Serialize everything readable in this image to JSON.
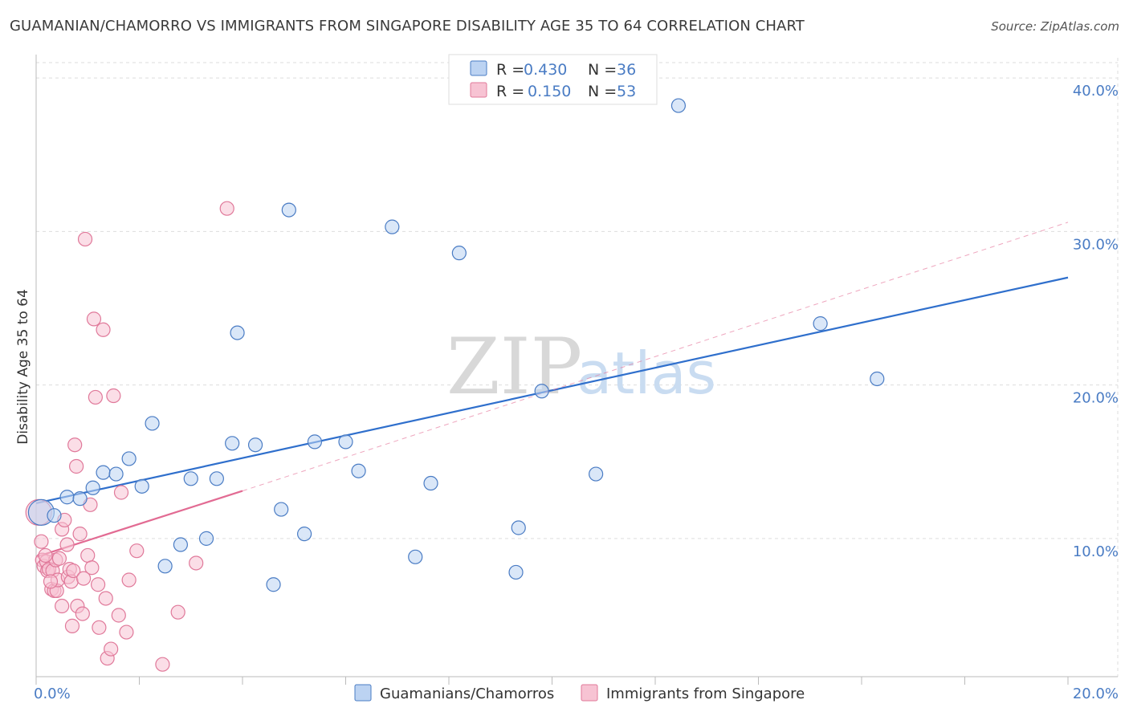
{
  "title": "GUAMANIAN/CHAMORRO VS IMMIGRANTS FROM SINGAPORE DISABILITY AGE 35 TO 64 CORRELATION CHART",
  "source": "Source: ZipAtlas.com",
  "watermark": {
    "zip": "ZIP",
    "atlas": "atlas"
  },
  "colors": {
    "blue": "#4a7cc4",
    "blue_fill": "#bcd3f2",
    "blue_line": "#2f6fcc",
    "pink": "#e0799a",
    "pink_fill": "#f7c3d3",
    "pink_line": "#e26b93",
    "grid": "#dddddd"
  },
  "legend": {
    "items": [
      {
        "r_label": "R =",
        "r_value": "0.430",
        "n_label": "N =",
        "n_value": "36",
        "color": "blue"
      },
      {
        "r_label": "R =",
        "r_value": "0.150",
        "n_label": "N =",
        "n_value": "53",
        "color": "pink"
      }
    ]
  },
  "chart_data": {
    "type": "scatter",
    "title": "GUAMANIAN/CHAMORRO VS IMMIGRANTS FROM SINGAPORE DISABILITY AGE 35 TO 64 CORRELATION CHART",
    "xlabel": "",
    "ylabel": "Disability Age 35 to 64",
    "xlim": [
      0,
      20
    ],
    "ylim": [
      1,
      41
    ],
    "x_tick_labels": [
      "0.0%",
      "20.0%"
    ],
    "y_ticks": [
      10,
      20,
      30,
      40
    ],
    "y_tick_labels": [
      "10.0%",
      "20.0%",
      "30.0%",
      "40.0%"
    ],
    "legend_position": "top-center",
    "series": [
      {
        "name": "Guamanians/Chamorros",
        "color": "blue",
        "points": [
          [
            0.1,
            11.7
          ],
          [
            0.35,
            11.5
          ],
          [
            0.6,
            12.7
          ],
          [
            0.85,
            12.6
          ],
          [
            1.1,
            13.3
          ],
          [
            1.3,
            14.3
          ],
          [
            1.55,
            14.2
          ],
          [
            1.8,
            15.2
          ],
          [
            2.05,
            13.4
          ],
          [
            2.25,
            17.5
          ],
          [
            2.5,
            8.2
          ],
          [
            2.8,
            9.6
          ],
          [
            3.0,
            13.9
          ],
          [
            3.3,
            10.0
          ],
          [
            3.5,
            13.9
          ],
          [
            3.8,
            16.2
          ],
          [
            3.9,
            23.4
          ],
          [
            4.25,
            16.1
          ],
          [
            4.6,
            7.0
          ],
          [
            4.75,
            11.9
          ],
          [
            4.9,
            31.4
          ],
          [
            5.2,
            10.3
          ],
          [
            5.4,
            16.3
          ],
          [
            6.0,
            16.3
          ],
          [
            6.25,
            14.4
          ],
          [
            6.9,
            30.3
          ],
          [
            7.35,
            8.8
          ],
          [
            7.65,
            13.6
          ],
          [
            8.2,
            28.6
          ],
          [
            9.35,
            10.7
          ],
          [
            9.3,
            7.8
          ],
          [
            9.8,
            19.6
          ],
          [
            10.85,
            14.2
          ],
          [
            12.45,
            38.2
          ],
          [
            15.2,
            24.0
          ],
          [
            16.3,
            20.4
          ]
        ]
      },
      {
        "name": "Immigrants from Singapore",
        "color": "pink",
        "points": [
          [
            0.05,
            11.7
          ],
          [
            0.1,
            9.8
          ],
          [
            0.12,
            8.6
          ],
          [
            0.15,
            8.2
          ],
          [
            0.2,
            8.5
          ],
          [
            0.22,
            7.9
          ],
          [
            0.25,
            8.0
          ],
          [
            0.3,
            6.7
          ],
          [
            0.32,
            7.9
          ],
          [
            0.35,
            6.6
          ],
          [
            0.38,
            8.6
          ],
          [
            0.4,
            6.6
          ],
          [
            0.42,
            7.3
          ],
          [
            0.45,
            8.7
          ],
          [
            0.5,
            10.6
          ],
          [
            0.5,
            5.6
          ],
          [
            0.55,
            11.2
          ],
          [
            0.6,
            9.6
          ],
          [
            0.62,
            7.5
          ],
          [
            0.65,
            8.0
          ],
          [
            0.68,
            7.2
          ],
          [
            0.7,
            4.3
          ],
          [
            0.72,
            7.9
          ],
          [
            0.75,
            16.1
          ],
          [
            0.78,
            14.7
          ],
          [
            0.8,
            5.6
          ],
          [
            0.85,
            10.3
          ],
          [
            0.9,
            5.1
          ],
          [
            0.92,
            7.4
          ],
          [
            0.95,
            29.5
          ],
          [
            1.0,
            8.9
          ],
          [
            1.05,
            12.2
          ],
          [
            1.08,
            8.1
          ],
          [
            1.12,
            24.3
          ],
          [
            1.15,
            19.2
          ],
          [
            1.2,
            7.0
          ],
          [
            1.22,
            4.2
          ],
          [
            1.3,
            23.6
          ],
          [
            1.35,
            6.1
          ],
          [
            1.38,
            2.2
          ],
          [
            1.45,
            2.8
          ],
          [
            1.5,
            19.3
          ],
          [
            1.6,
            5.0
          ],
          [
            1.65,
            13.0
          ],
          [
            1.75,
            3.9
          ],
          [
            1.8,
            7.3
          ],
          [
            1.95,
            9.2
          ],
          [
            2.45,
            1.8
          ],
          [
            2.75,
            5.2
          ],
          [
            3.1,
            8.4
          ],
          [
            3.7,
            31.5
          ],
          [
            0.28,
            7.2
          ],
          [
            0.18,
            8.9
          ]
        ]
      }
    ],
    "trend_lines": [
      {
        "series": "Guamanians/Chamorros",
        "style": "solid",
        "x": [
          0,
          20
        ],
        "y": [
          12.3,
          27.0
        ]
      },
      {
        "series": "Immigrants from Singapore",
        "style": "solid",
        "x": [
          0,
          4.0
        ],
        "y": [
          8.8,
          13.1
        ]
      },
      {
        "series": "Immigrants from Singapore",
        "style": "dashed",
        "x": [
          4.0,
          20
        ],
        "y": [
          13.1,
          30.6
        ]
      }
    ]
  },
  "bottom_legend": {
    "items": [
      {
        "label": "Guamanians/Chamorros",
        "color": "blue"
      },
      {
        "label": "Immigrants from Singapore",
        "color": "pink"
      }
    ]
  }
}
